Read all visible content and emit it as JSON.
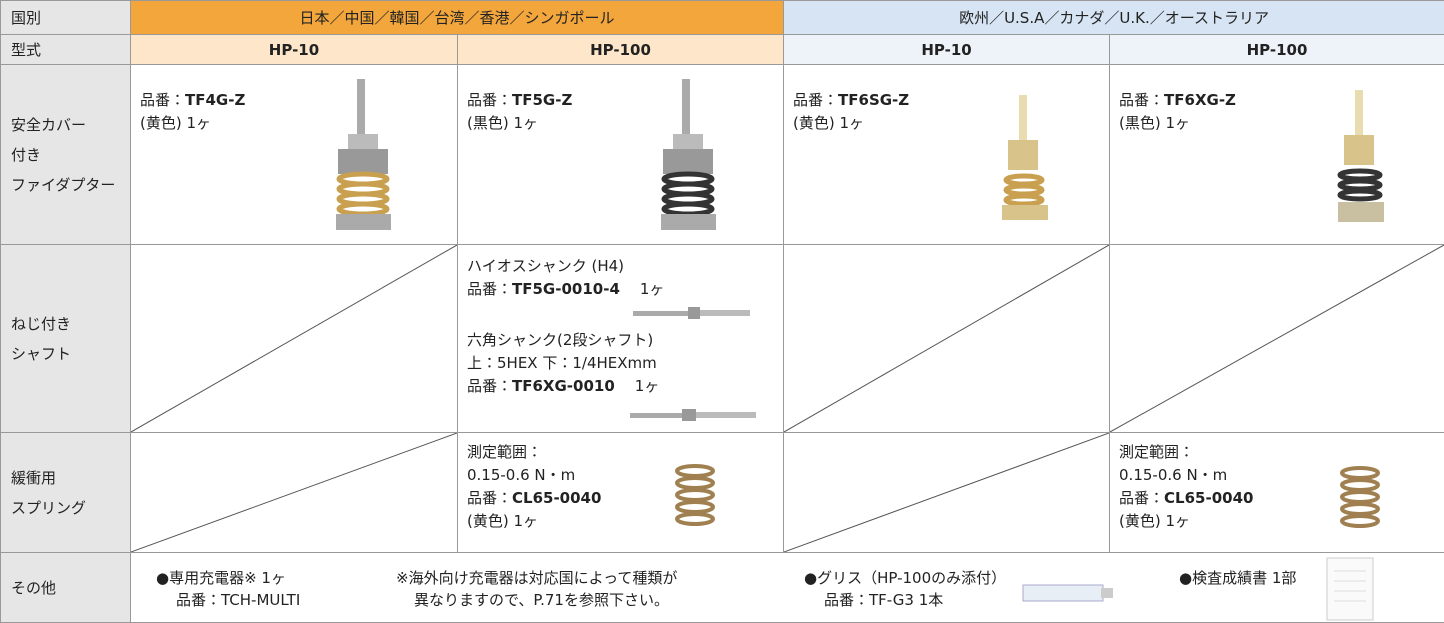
{
  "header": {
    "country": "国別",
    "model": "型式",
    "regions": [
      "日本／中国／韓国／台湾／香港／シンガポール",
      "欧州／U.S.A／カナダ／U.K.／オーストラリア"
    ],
    "models": [
      "HP-10",
      "HP-100",
      "HP-10",
      "HP-100"
    ]
  },
  "rows": [
    {
      "label": [
        "安全カバー",
        "付き",
        "ファイダプター"
      ],
      "cells": [
        [
          [
            "品番：",
            "TF4G-Z"
          ],
          [
            "(黄色) 1ヶ"
          ]
        ],
        [
          [
            "品番：",
            "TF5G-Z"
          ],
          [
            "(黒色) 1ヶ"
          ]
        ],
        [
          [
            "品番：",
            "TF6SG-Z"
          ],
          [
            "(黄色) 1ヶ"
          ]
        ],
        [
          [
            "品番：",
            "TF6XG-Z"
          ],
          [
            "(黒色) 1ヶ"
          ]
        ]
      ]
    },
    {
      "label": [
        "ねじ付き",
        "シャフト"
      ],
      "cells": [
        [],
        [
          [
            "ハイオスシャンク (H4)"
          ],
          [
            "品番：",
            "TF5G-0010-4",
            "1ヶ"
          ],
          [
            "六角シャンク(2段シャフト)"
          ],
          [
            "上：5HEX 下：1/4HEXmm"
          ],
          [
            "品番：",
            "TF6XG-0010",
            "1ヶ"
          ]
        ],
        [],
        []
      ]
    },
    {
      "label": [
        "緩衝用",
        "スプリング"
      ],
      "cells": [
        [],
        [
          [
            "測定範囲："
          ],
          [
            "0.15-0.6 N・m"
          ],
          [
            "品番：",
            "CL65-0040"
          ],
          [
            "(黄色) 1ヶ"
          ]
        ],
        [],
        [
          [
            "測定範囲："
          ],
          [
            "0.15-0.6 N・m"
          ],
          [
            "品番：",
            "CL65-0040"
          ],
          [
            "(黄色) 1ヶ"
          ]
        ]
      ]
    },
    {
      "label": [
        "その他"
      ],
      "items": [
        [
          "●専用充電器※ 1ヶ",
          "品番：TCH-MULTI"
        ],
        [
          "※海外向け充電器は対応国によって種類が",
          "異なりますので、P.71を参照下さい。"
        ],
        [
          "●グリス（HP-100のみ添付）",
          "品番：TF-G3 1本"
        ],
        [
          "●検査成績書 1部"
        ]
      ]
    }
  ]
}
